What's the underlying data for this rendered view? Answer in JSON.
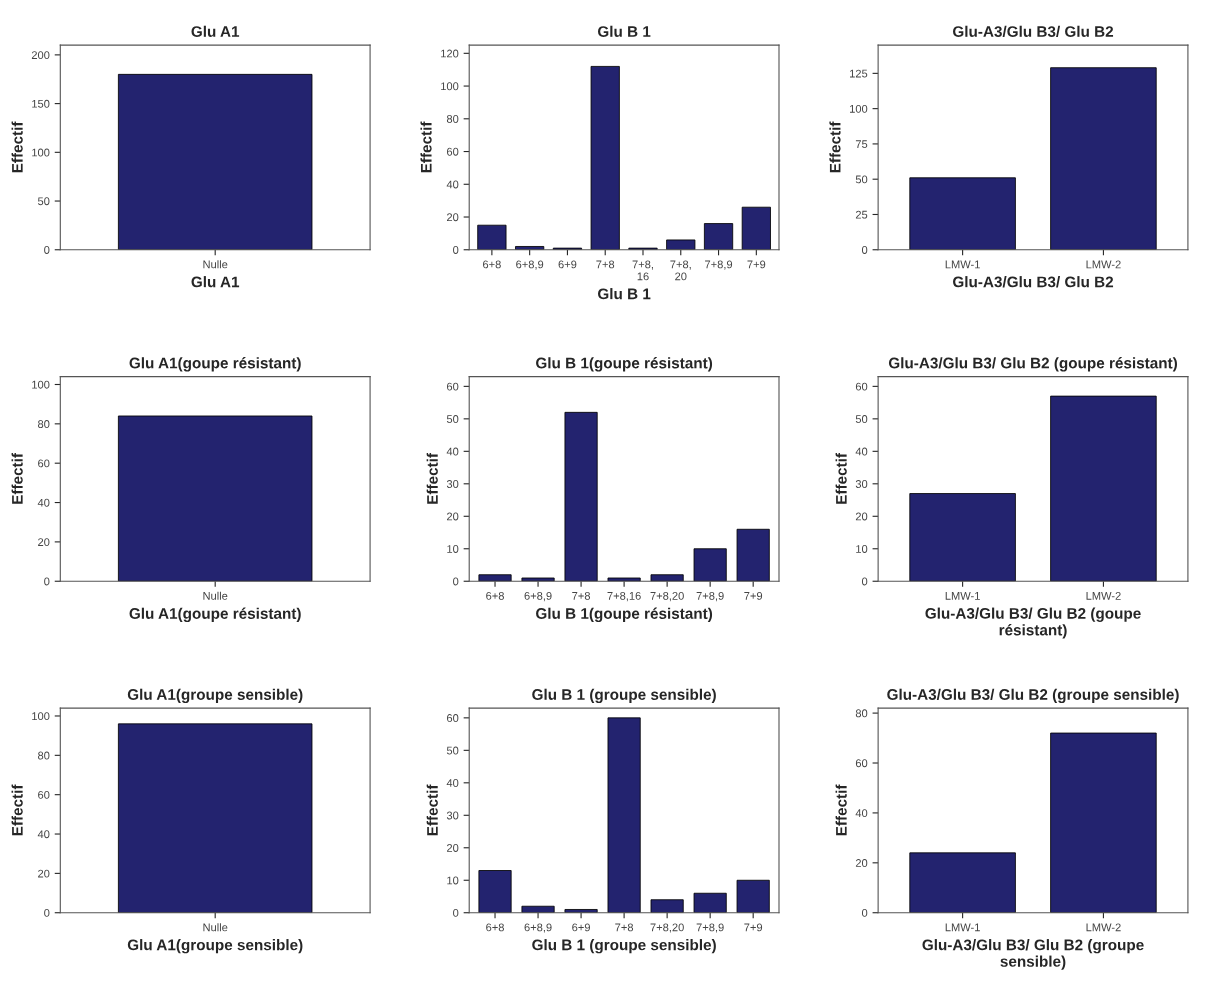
{
  "chart_data": [
    {
      "type": "bar",
      "title": "Glu A1",
      "xlabel": "Glu A1",
      "ylabel": "Effectif",
      "categories": [
        "Nulle"
      ],
      "values": [
        180
      ],
      "color": "#23236f",
      "ylim": [
        0,
        210
      ],
      "yticks": [
        0,
        50,
        100,
        150,
        200
      ],
      "grid": false
    },
    {
      "type": "bar",
      "title": "Glu B 1",
      "xlabel": "Glu B 1",
      "ylabel": "Effectif",
      "categories": [
        "6+8",
        "6+8,9",
        "6+9",
        "7+8",
        "7+8,\n16",
        "7+8,\n20",
        "7+8,9",
        "7+9"
      ],
      "values": [
        15,
        2,
        1,
        112,
        1,
        6,
        16,
        26
      ],
      "color": "#23236f",
      "ylim": [
        0,
        125
      ],
      "yticks": [
        0,
        20,
        40,
        60,
        80,
        100,
        120
      ],
      "grid": false
    },
    {
      "type": "bar",
      "title": "Glu-A3/Glu B3/ Glu B2",
      "xlabel": "Glu-A3/Glu B3/ Glu B2",
      "ylabel": "Effectif",
      "categories": [
        "LMW-1",
        "LMW-2"
      ],
      "values": [
        51,
        129
      ],
      "color": "#23236f",
      "ylim": [
        0,
        145
      ],
      "yticks": [
        0,
        25,
        50,
        75,
        100,
        125
      ],
      "grid": false
    },
    {
      "type": "bar",
      "title": "Glu A1(goupe résistant)",
      "xlabel": "Glu A1(goupe résistant)",
      "ylabel": "Effectif",
      "categories": [
        "Nulle"
      ],
      "values": [
        84
      ],
      "color": "#23236f",
      "ylim": [
        0,
        104
      ],
      "yticks": [
        0,
        20,
        40,
        60,
        80,
        100
      ],
      "grid": false
    },
    {
      "type": "bar",
      "title": "Glu B 1(goupe résistant)",
      "xlabel": "Glu B 1(goupe résistant)",
      "ylabel": "Effectif",
      "categories": [
        "6+8",
        "6+8,9",
        "7+8",
        "7+8,16",
        "7+8,20",
        "7+8,9",
        "7+9"
      ],
      "values": [
        2,
        1,
        52,
        1,
        2,
        10,
        16
      ],
      "color": "#23236f",
      "ylim": [
        0,
        63
      ],
      "yticks": [
        0,
        10,
        20,
        30,
        40,
        50,
        60
      ],
      "grid": false
    },
    {
      "type": "bar",
      "title": "Glu-A3/Glu B3/ Glu B2 (goupe résistant)",
      "xlabel": "Glu-A3/Glu B3/ Glu B2 (goupe\nrésistant)",
      "ylabel": "Effectif",
      "categories": [
        "LMW-1",
        "LMW-2"
      ],
      "values": [
        27,
        57
      ],
      "color": "#23236f",
      "ylim": [
        0,
        63
      ],
      "yticks": [
        0,
        10,
        20,
        30,
        40,
        50,
        60
      ],
      "grid": false
    },
    {
      "type": "bar",
      "title": "Glu A1(groupe sensible)",
      "xlabel": "Glu A1(groupe sensible)",
      "ylabel": "Effectif",
      "categories": [
        "Nulle"
      ],
      "values": [
        96
      ],
      "color": "#23236f",
      "ylim": [
        0,
        104
      ],
      "yticks": [
        0,
        20,
        40,
        60,
        80,
        100
      ],
      "grid": false
    },
    {
      "type": "bar",
      "title": "Glu B 1 (groupe sensible)",
      "xlabel": "Glu B 1 (groupe sensible)",
      "ylabel": "Effectif",
      "categories": [
        "6+8",
        "6+8,9",
        "6+9",
        "7+8",
        "7+8,20",
        "7+8,9",
        "7+9"
      ],
      "values": [
        13,
        2,
        1,
        60,
        4,
        6,
        10
      ],
      "color": "#23236f",
      "ylim": [
        0,
        63
      ],
      "yticks": [
        0,
        10,
        20,
        30,
        40,
        50,
        60
      ],
      "grid": false
    },
    {
      "type": "bar",
      "title": "Glu-A3/Glu B3/ Glu B2 (groupe sensible)",
      "xlabel": "Glu-A3/Glu B3/ Glu B2 (groupe\nsensible)",
      "ylabel": "Effectif",
      "categories": [
        "LMW-1",
        "LMW-2"
      ],
      "values": [
        24,
        72
      ],
      "color": "#23236f",
      "ylim": [
        0,
        82
      ],
      "yticks": [
        0,
        20,
        40,
        60,
        80
      ],
      "grid": false
    }
  ]
}
